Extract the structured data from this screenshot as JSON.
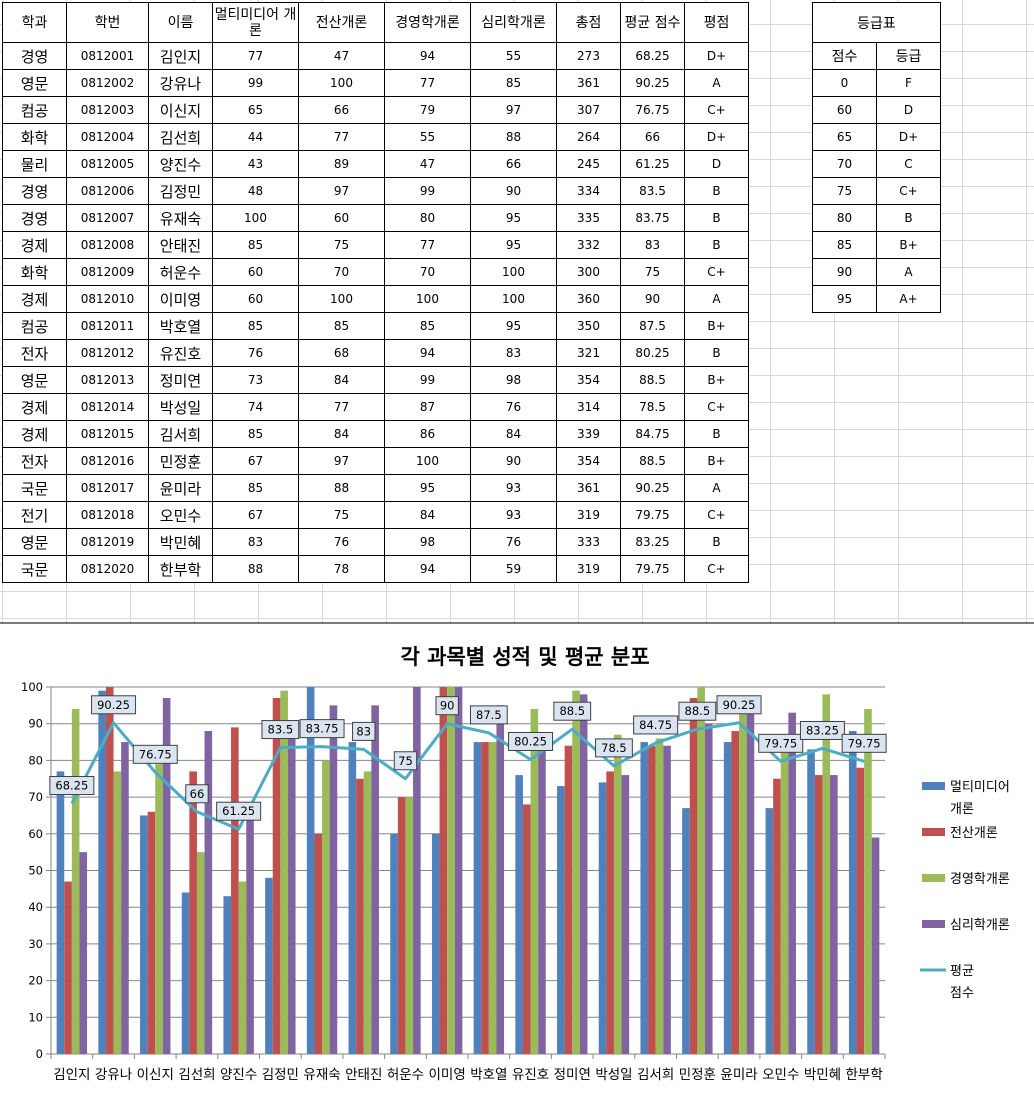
{
  "table": {
    "headers": [
      "학과",
      "학번",
      "이름",
      "멀티미디어\n개론",
      "전산개론",
      "경영학개론",
      "심리학개론",
      "총점",
      "평균\n점수",
      "평점"
    ],
    "rows": [
      [
        "경영",
        "0812001",
        "김인지",
        "77",
        "47",
        "94",
        "55",
        "273",
        "68.25",
        "D+"
      ],
      [
        "영문",
        "0812002",
        "강유나",
        "99",
        "100",
        "77",
        "85",
        "361",
        "90.25",
        "A"
      ],
      [
        "컴공",
        "0812003",
        "이신지",
        "65",
        "66",
        "79",
        "97",
        "307",
        "76.75",
        "C+"
      ],
      [
        "화학",
        "0812004",
        "김선희",
        "44",
        "77",
        "55",
        "88",
        "264",
        "66",
        "D+"
      ],
      [
        "물리",
        "0812005",
        "양진수",
        "43",
        "89",
        "47",
        "66",
        "245",
        "61.25",
        "D"
      ],
      [
        "경영",
        "0812006",
        "김정민",
        "48",
        "97",
        "99",
        "90",
        "334",
        "83.5",
        "B"
      ],
      [
        "경영",
        "0812007",
        "유재숙",
        "100",
        "60",
        "80",
        "95",
        "335",
        "83.75",
        "B"
      ],
      [
        "경제",
        "0812008",
        "안태진",
        "85",
        "75",
        "77",
        "95",
        "332",
        "83",
        "B"
      ],
      [
        "화학",
        "0812009",
        "허운수",
        "60",
        "70",
        "70",
        "100",
        "300",
        "75",
        "C+"
      ],
      [
        "경제",
        "0812010",
        "이미영",
        "60",
        "100",
        "100",
        "100",
        "360",
        "90",
        "A"
      ],
      [
        "컴공",
        "0812011",
        "박호열",
        "85",
        "85",
        "85",
        "95",
        "350",
        "87.5",
        "B+"
      ],
      [
        "전자",
        "0812012",
        "유진호",
        "76",
        "68",
        "94",
        "83",
        "321",
        "80.25",
        "B"
      ],
      [
        "영문",
        "0812013",
        "정미연",
        "73",
        "84",
        "99",
        "98",
        "354",
        "88.5",
        "B+"
      ],
      [
        "경제",
        "0812014",
        "박성일",
        "74",
        "77",
        "87",
        "76",
        "314",
        "78.5",
        "C+"
      ],
      [
        "경제",
        "0812015",
        "김서희",
        "85",
        "84",
        "86",
        "84",
        "339",
        "84.75",
        "B"
      ],
      [
        "전자",
        "0812016",
        "민정훈",
        "67",
        "97",
        "100",
        "90",
        "354",
        "88.5",
        "B+"
      ],
      [
        "국문",
        "0812017",
        "윤미라",
        "85",
        "88",
        "95",
        "93",
        "361",
        "90.25",
        "A"
      ],
      [
        "전기",
        "0812018",
        "오민수",
        "67",
        "75",
        "84",
        "93",
        "319",
        "79.75",
        "C+"
      ],
      [
        "영문",
        "0812019",
        "박민혜",
        "83",
        "76",
        "98",
        "76",
        "333",
        "83.25",
        "B"
      ],
      [
        "국문",
        "0812020",
        "한부학",
        "88",
        "78",
        "94",
        "59",
        "319",
        "79.75",
        "C+"
      ]
    ]
  },
  "grade_table": {
    "title": "등급표",
    "headers": [
      "점수",
      "등급"
    ],
    "rows": [
      [
        "0",
        "F"
      ],
      [
        "60",
        "D"
      ],
      [
        "65",
        "D+"
      ],
      [
        "70",
        "C"
      ],
      [
        "75",
        "C+"
      ],
      [
        "80",
        "B"
      ],
      [
        "85",
        "B+"
      ],
      [
        "90",
        "A"
      ],
      [
        "95",
        "A+"
      ]
    ]
  },
  "chart_data": {
    "type": "bar",
    "title": "각 과목별 성적 및 평균 분포",
    "categories": [
      "김인지",
      "강유나",
      "이신지",
      "김선희",
      "양진수",
      "김정민",
      "유재숙",
      "안태진",
      "허운수",
      "이미영",
      "박호열",
      "유진호",
      "정미연",
      "박성일",
      "김서희",
      "민정훈",
      "윤미라",
      "오민수",
      "박민혜",
      "한부학"
    ],
    "ylim": [
      0,
      100
    ],
    "yticks": [
      0,
      10,
      20,
      30,
      40,
      50,
      60,
      70,
      80,
      90,
      100
    ],
    "grid": true,
    "legend": "right",
    "series": [
      {
        "name": "멀티미디어\n개론",
        "type": "bar",
        "color": "#4f81bd",
        "values": [
          77,
          99,
          65,
          44,
          43,
          48,
          100,
          85,
          60,
          60,
          85,
          76,
          73,
          74,
          85,
          67,
          85,
          67,
          83,
          88
        ]
      },
      {
        "name": "전산개론",
        "type": "bar",
        "color": "#c0504d",
        "values": [
          47,
          100,
          66,
          77,
          89,
          97,
          60,
          75,
          70,
          100,
          85,
          68,
          84,
          77,
          84,
          97,
          88,
          75,
          76,
          78
        ]
      },
      {
        "name": "경영학개론",
        "type": "bar",
        "color": "#9bbb59",
        "values": [
          94,
          77,
          79,
          55,
          47,
          99,
          80,
          77,
          70,
          100,
          85,
          94,
          99,
          87,
          86,
          100,
          95,
          84,
          98,
          94
        ]
      },
      {
        "name": "심리학개론",
        "type": "bar",
        "color": "#8064a2",
        "values": [
          55,
          85,
          97,
          88,
          66,
          90,
          95,
          95,
          100,
          100,
          95,
          83,
          98,
          76,
          84,
          90,
          93,
          93,
          76,
          59
        ]
      },
      {
        "name": "평균\n점수",
        "type": "line",
        "color": "#4bacc6",
        "values": [
          68.25,
          90.25,
          76.75,
          66,
          61.25,
          83.5,
          83.75,
          83,
          75,
          90,
          87.5,
          80.25,
          88.5,
          78.5,
          84.75,
          88.5,
          90.25,
          79.75,
          83.25,
          79.75
        ]
      }
    ]
  }
}
